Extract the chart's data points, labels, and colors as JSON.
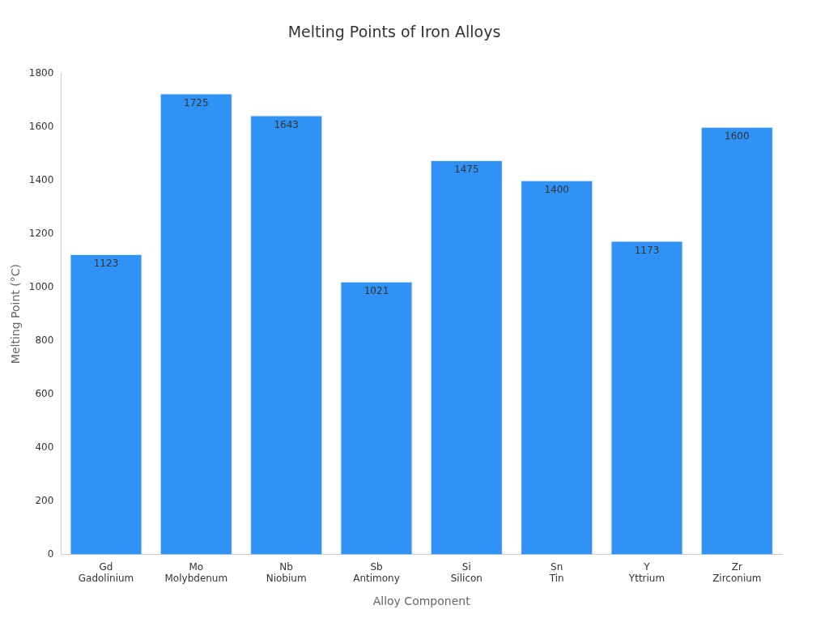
{
  "chart_data": {
    "type": "bar",
    "title": "Melting Points of Iron Alloys",
    "xlabel": "Alloy Component",
    "ylabel": "Melting Point (°C)",
    "categories": [
      "Gd\nGadolinium",
      "Mo\nMolybdenum",
      "Nb\nNiobium",
      "Sb\nAntimony",
      "Si\nSilicon",
      "Sn\nTin",
      "Y\nYttrium",
      "Zr\nZirconium"
    ],
    "values": [
      1123,
      1725,
      1643,
      1021,
      1475,
      1400,
      1173,
      1600
    ],
    "color": "#3092f5",
    "ylim": [
      0,
      1800
    ],
    "yticks": [
      0,
      200,
      400,
      600,
      800,
      1000,
      1200,
      1400,
      1600,
      1800
    ],
    "grid": false,
    "legend": false,
    "data_labels": true
  }
}
